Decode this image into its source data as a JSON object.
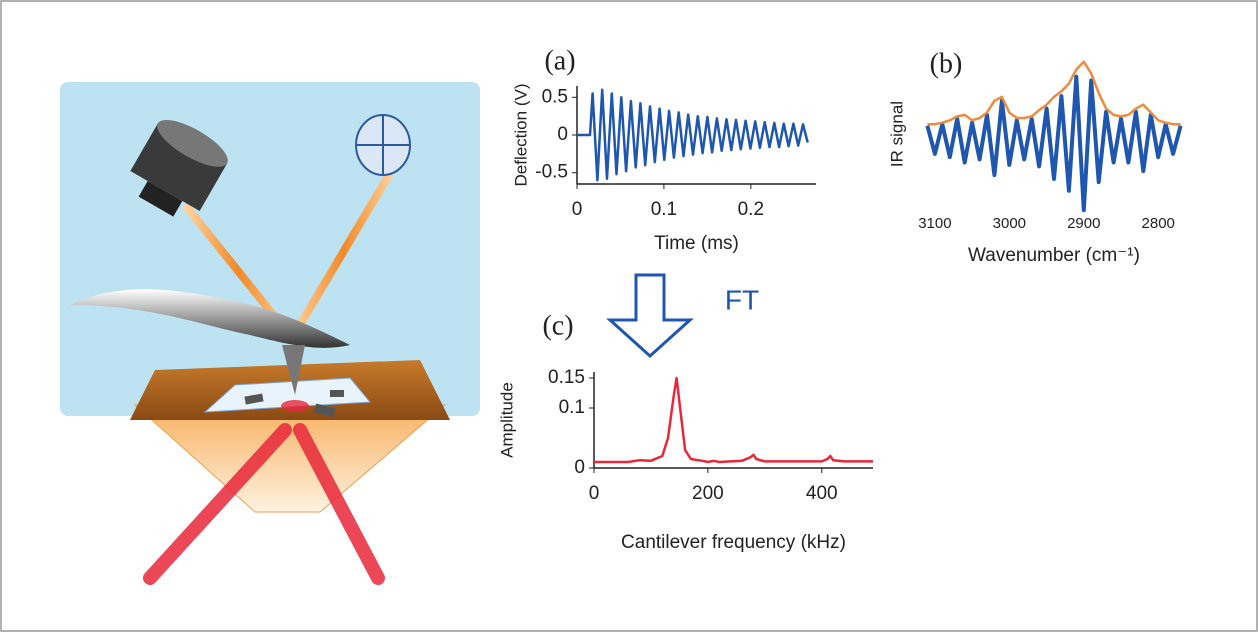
{
  "chart_data": [
    {
      "type": "line",
      "label": "(a)",
      "x_label": "Time (ms)",
      "y_label": "Deflection (V)",
      "x": [
        0,
        0.015,
        0.018,
        0.0235,
        0.029,
        0.0345,
        0.04,
        0.0455,
        0.051,
        0.0565,
        0.062,
        0.0675,
        0.073,
        0.0785,
        0.084,
        0.0895,
        0.095,
        0.1005,
        0.106,
        0.1115,
        0.117,
        0.1225,
        0.128,
        0.1335,
        0.139,
        0.1445,
        0.15,
        0.1555,
        0.161,
        0.1665,
        0.172,
        0.1775,
        0.183,
        0.1885,
        0.194,
        0.1995,
        0.205,
        0.2105,
        0.216,
        0.2215,
        0.227,
        0.2325,
        0.238,
        0.2435,
        0.249,
        0.2545,
        0.26,
        0.2655
      ],
      "series": [
        {
          "color": "#1f56b0",
          "values": [
            0,
            0,
            0.55,
            -0.6,
            0.6,
            -0.58,
            0.55,
            -0.52,
            0.5,
            -0.48,
            0.45,
            -0.43,
            0.42,
            -0.4,
            0.38,
            -0.36,
            0.35,
            -0.33,
            0.32,
            -0.3,
            0.3,
            -0.28,
            0.27,
            -0.26,
            0.25,
            -0.24,
            0.24,
            -0.23,
            0.22,
            -0.21,
            0.21,
            -0.2,
            0.2,
            -0.19,
            0.19,
            -0.18,
            0.18,
            -0.17,
            0.17,
            -0.16,
            0.16,
            -0.16,
            0.15,
            -0.15,
            0.15,
            -0.14,
            0.14,
            -0.1
          ]
        }
      ],
      "xlim": [
        0,
        0.275
      ],
      "xticks": [
        0,
        0.1,
        0.2
      ],
      "ylim": [
        -0.65,
        0.65
      ],
      "yticks": [
        -0.5,
        0,
        0.5
      ]
    },
    {
      "type": "line",
      "label": "(b)",
      "x_label": "Wavenumber (cm⁻¹)",
      "y_label": "IR signal",
      "x": [
        3110,
        3100,
        3090,
        3080,
        3070,
        3060,
        3050,
        3040,
        3030,
        3020,
        3010,
        3000,
        2990,
        2980,
        2970,
        2960,
        2950,
        2940,
        2930,
        2920,
        2910,
        2900,
        2890,
        2880,
        2870,
        2860,
        2850,
        2840,
        2830,
        2820,
        2810,
        2800,
        2790,
        2780,
        2770
      ],
      "series": [
        {
          "color": "#1f56b0",
          "values": [
            0.18,
            -0.18,
            0.2,
            -0.22,
            0.27,
            -0.29,
            0.22,
            -0.25,
            0.32,
            -0.45,
            0.5,
            -0.32,
            0.25,
            -0.25,
            0.27,
            -0.34,
            0.4,
            -0.5,
            0.56,
            -0.65,
            0.81,
            -0.9,
            0.76,
            -0.54,
            0.36,
            -0.29,
            0.27,
            -0.29,
            0.36,
            -0.4,
            0.32,
            -0.22,
            0.2,
            -0.18,
            0.18
          ]
        },
        {
          "color": "#f08a3c",
          "values": [
            0.2,
            0.2,
            0.22,
            0.25,
            0.3,
            0.32,
            0.25,
            0.28,
            0.35,
            0.5,
            0.55,
            0.35,
            0.28,
            0.28,
            0.3,
            0.38,
            0.45,
            0.55,
            0.62,
            0.72,
            0.9,
            1.0,
            0.85,
            0.6,
            0.4,
            0.32,
            0.3,
            0.32,
            0.4,
            0.45,
            0.35,
            0.25,
            0.22,
            0.2,
            0.2
          ]
        }
      ],
      "xlim": [
        3120,
        2760
      ],
      "xticks": [
        3100,
        3000,
        2900,
        2800
      ],
      "ylim": [
        -1.0,
        1.15
      ]
    },
    {
      "type": "line",
      "label": "(c)",
      "x_label": "Cantilever frequency (kHz)",
      "y_label": "Amplitude",
      "x": [
        0,
        60,
        80,
        100,
        120,
        130,
        140,
        145,
        150,
        160,
        170,
        190,
        200,
        210,
        220,
        240,
        260,
        275,
        280,
        285,
        300,
        350,
        400,
        410,
        415,
        420,
        440,
        490
      ],
      "series": [
        {
          "color": "#e8283a",
          "values": [
            0.01,
            0.01,
            0.013,
            0.012,
            0.02,
            0.05,
            0.12,
            0.15,
            0.11,
            0.03,
            0.015,
            0.012,
            0.01,
            0.012,
            0.01,
            0.011,
            0.012,
            0.018,
            0.022,
            0.015,
            0.011,
            0.011,
            0.011,
            0.015,
            0.02,
            0.013,
            0.011,
            0.011
          ]
        }
      ],
      "xlim": [
        0,
        490
      ],
      "xticks": [
        0,
        200,
        400
      ],
      "ylim": [
        0,
        0.16
      ],
      "yticks": [
        0,
        0.1,
        0.15
      ]
    }
  ],
  "arrow_label": "FT"
}
